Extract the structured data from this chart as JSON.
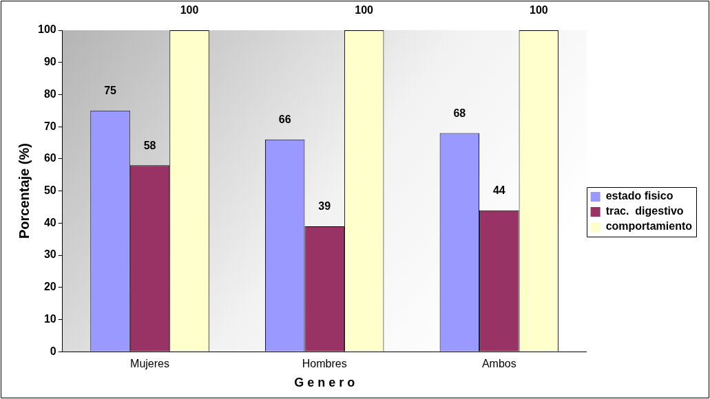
{
  "chart_data": {
    "type": "bar",
    "xlabel": "G e n e r o",
    "ylabel": "Porcentaje (%)",
    "categories": [
      "Mujeres",
      "Hombres",
      "Ambos"
    ],
    "series": [
      {
        "name": "estado fisico",
        "color": "#9999ff",
        "values": [
          75,
          66,
          68
        ]
      },
      {
        "name": "trac.  digestivo",
        "color": "#993366",
        "values": [
          58,
          39,
          44
        ]
      },
      {
        "name": "comportamiento",
        "color": "#ffffcc",
        "values": [
          100,
          100,
          100
        ]
      }
    ],
    "ylim": [
      0,
      100
    ],
    "yticks": [
      0,
      10,
      20,
      30,
      40,
      50,
      60,
      70,
      80,
      90,
      100
    ],
    "grid": false,
    "legend": "right",
    "data_labels": true
  }
}
